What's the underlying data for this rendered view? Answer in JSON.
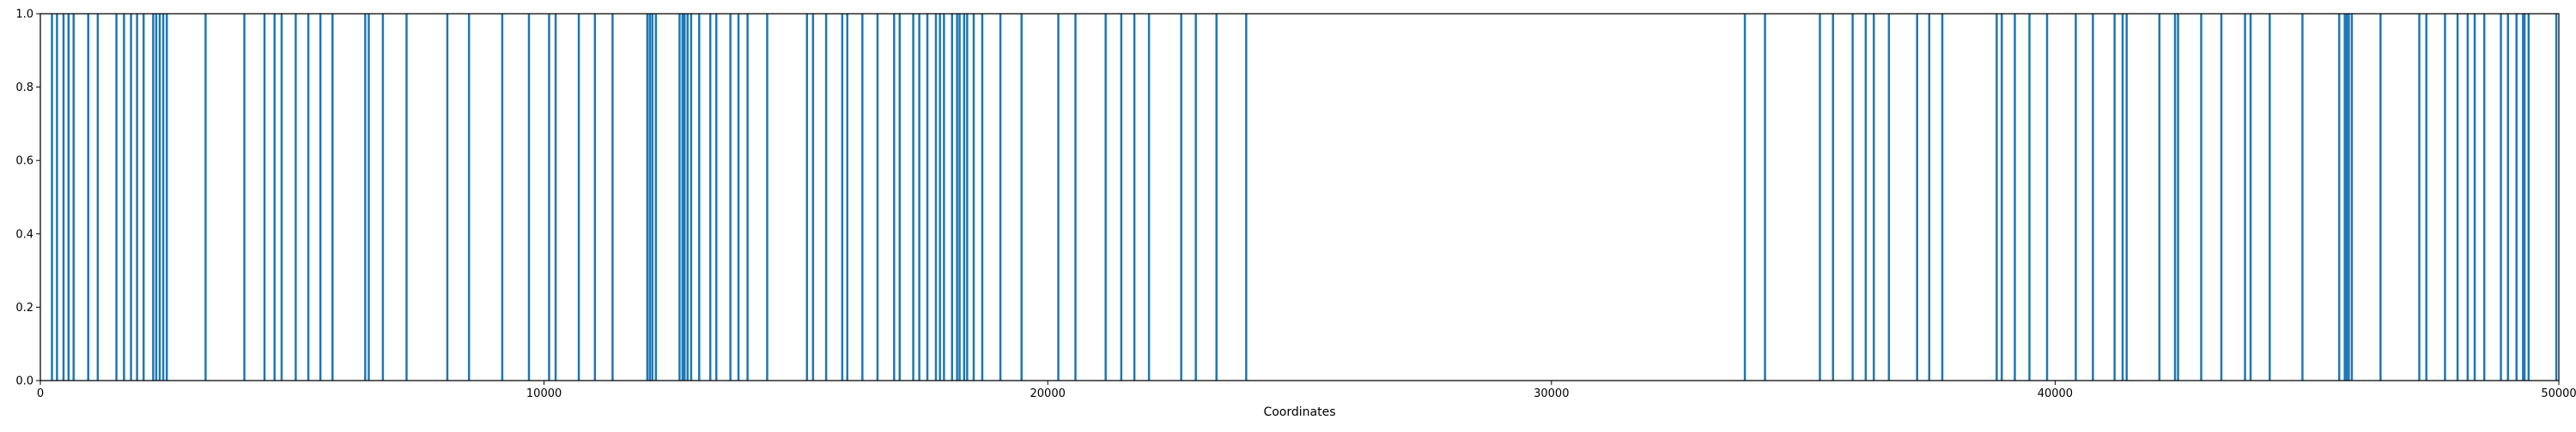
{
  "chart_data": {
    "type": "bar",
    "title": "",
    "xlabel": "Coordinates",
    "ylabel": "",
    "xlim": [
      0,
      50000
    ],
    "ylim": [
      0,
      1.0
    ],
    "xticks": [
      0,
      10000,
      20000,
      30000,
      40000,
      50000
    ],
    "xtick_labels": [
      "0",
      "10000",
      "20000",
      "30000",
      "40000",
      "50000"
    ],
    "yticks": [
      0.0,
      0.2,
      0.4,
      0.6,
      0.8,
      1.0
    ],
    "ytick_labels": [
      "0.0",
      "0.2",
      "0.4",
      "0.6",
      "0.8",
      "1.0"
    ],
    "grid": false,
    "legend": "none",
    "bar_color": "#1f77b4",
    "series": [
      {
        "x": [
          230,
          330,
          460,
          560,
          660,
          950,
          1140,
          1510,
          1660,
          1800,
          1920,
          2050,
          2240,
          2300,
          2370,
          2440,
          2510,
          3280,
          4050,
          4450,
          4650,
          4790,
          5070,
          5320,
          5560,
          5800,
          6450,
          6520,
          6800,
          7270,
          8080,
          8510,
          9170,
          9700,
          10100,
          10230,
          10690,
          11010,
          11360,
          12050,
          12100,
          12150,
          12220,
          12690,
          12750,
          12790,
          12850,
          12920,
          13080,
          13300,
          13420,
          13700,
          13860,
          14040,
          14430,
          15220,
          15340,
          15600,
          15920,
          16020,
          16320,
          16620,
          16950,
          17060,
          17330,
          17450,
          17610,
          17780,
          17860,
          17940,
          18100,
          18200,
          18250,
          18340,
          18400,
          18530,
          18700,
          19060,
          19480,
          20210,
          20550,
          21150,
          21460,
          21720,
          22010,
          22650,
          22940,
          23350,
          23940,
          33840,
          34240,
          35330,
          35590,
          35980,
          36240,
          36400,
          36700,
          37260,
          37500,
          37760,
          38840,
          38940,
          39200,
          39490,
          39840,
          40410,
          40750,
          41180,
          41340,
          41420,
          42070,
          42380,
          42440,
          42900,
          43300,
          43770,
          43880,
          44260,
          44910,
          45640,
          45750,
          45790,
          45830,
          45890,
          46460,
          47230,
          47370,
          47740,
          47990,
          48190,
          48330,
          48520,
          48850,
          48990,
          49160,
          49290,
          49320,
          49400,
          49950
        ],
        "values": [
          1.0,
          1.0,
          1.0,
          1.0,
          1.0,
          1.0,
          1.0,
          1.0,
          1.0,
          1.0,
          1.0,
          1.0,
          1.0,
          1.0,
          1.0,
          1.0,
          1.0,
          1.0,
          1.0,
          1.0,
          1.0,
          1.0,
          1.0,
          1.0,
          1.0,
          1.0,
          1.0,
          1.0,
          1.0,
          1.0,
          1.0,
          1.0,
          1.0,
          1.0,
          1.0,
          1.0,
          1.0,
          1.0,
          1.0,
          1.0,
          1.0,
          1.0,
          1.0,
          1.0,
          1.0,
          1.0,
          1.0,
          1.0,
          1.0,
          1.0,
          1.0,
          1.0,
          1.0,
          1.0,
          1.0,
          1.0,
          1.0,
          1.0,
          1.0,
          1.0,
          1.0,
          1.0,
          1.0,
          1.0,
          1.0,
          1.0,
          1.0,
          1.0,
          1.0,
          1.0,
          1.0,
          1.0,
          1.0,
          1.0,
          1.0,
          1.0,
          1.0,
          1.0,
          1.0,
          1.0,
          1.0,
          1.0,
          1.0,
          1.0,
          1.0,
          1.0,
          1.0,
          1.0,
          1.0,
          1.0,
          1.0,
          1.0,
          1.0,
          1.0,
          1.0,
          1.0,
          1.0,
          1.0,
          1.0,
          1.0,
          1.0,
          1.0,
          1.0,
          1.0,
          1.0,
          1.0,
          1.0,
          1.0,
          1.0,
          1.0,
          1.0,
          1.0,
          1.0,
          1.0,
          1.0,
          1.0,
          1.0,
          1.0,
          1.0,
          1.0,
          1.0,
          1.0,
          1.0,
          1.0,
          1.0,
          1.0,
          1.0,
          1.0,
          1.0,
          1.0,
          1.0,
          1.0,
          1.0,
          1.0,
          1.0,
          1.0,
          1.0,
          1.0,
          1.0
        ]
      }
    ]
  }
}
